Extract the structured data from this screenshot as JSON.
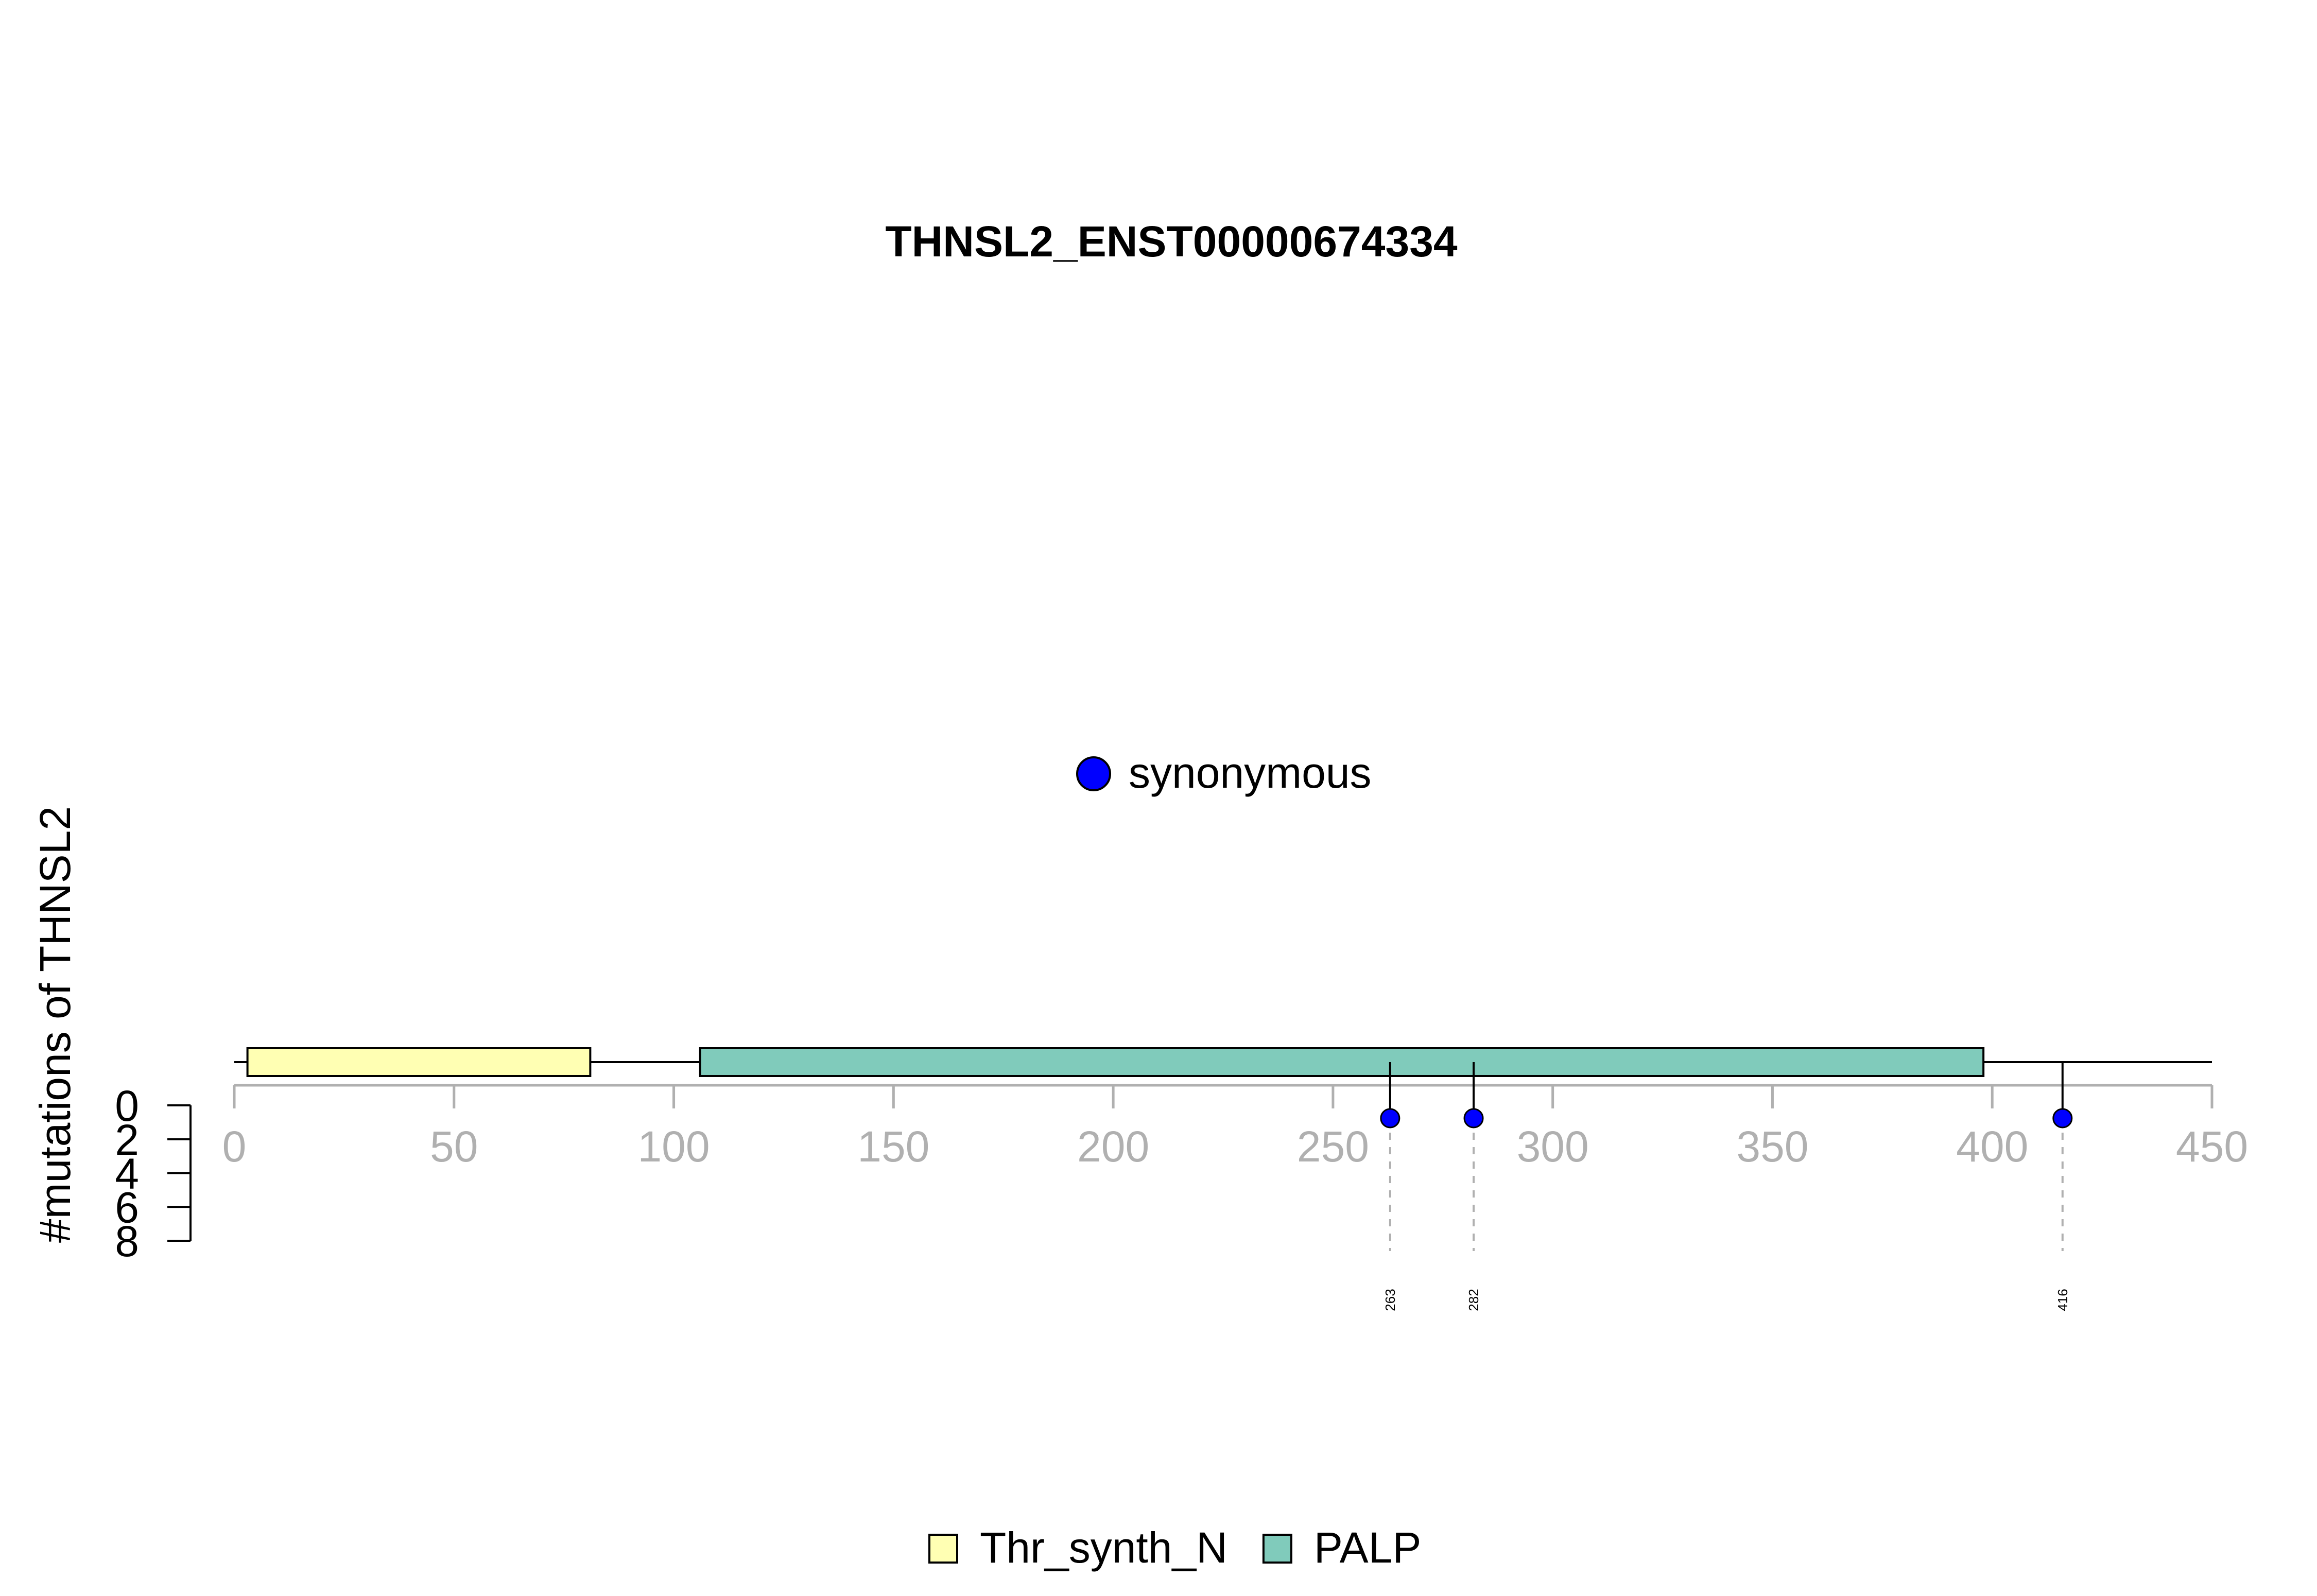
{
  "chart_data": {
    "type": "lollipop",
    "title": "THNSL2_ENST00000674334",
    "ylabel": "#mutations of THNSL2",
    "xlim": [
      0,
      450
    ],
    "x_ticks": [
      0,
      50,
      100,
      150,
      200,
      250,
      300,
      350,
      400,
      450
    ],
    "y_ticks": [
      0,
      2,
      4,
      6,
      8
    ],
    "ylim": [
      0,
      8
    ],
    "protein_length": 450,
    "domains": [
      {
        "name": "Thr_synth_N",
        "start": 3,
        "end": 81,
        "color": "#ffffb3"
      },
      {
        "name": "PALP",
        "start": 106,
        "end": 398,
        "color": "#80cbbb"
      }
    ],
    "mutations": [
      {
        "position": 263,
        "label": "263",
        "count": 1,
        "type": "synonymous"
      },
      {
        "position": 282,
        "label": "282",
        "count": 1,
        "type": "synonymous"
      },
      {
        "position": 416,
        "label": "416",
        "count": 1,
        "type": "synonymous"
      }
    ],
    "mutation_legend": [
      {
        "label": "synonymous",
        "color": "#0000ff"
      }
    ],
    "domain_legend": [
      {
        "label": "Thr_synth_N",
        "color": "#ffffb3"
      },
      {
        "label": "PALP",
        "color": "#80cbbb"
      }
    ]
  }
}
